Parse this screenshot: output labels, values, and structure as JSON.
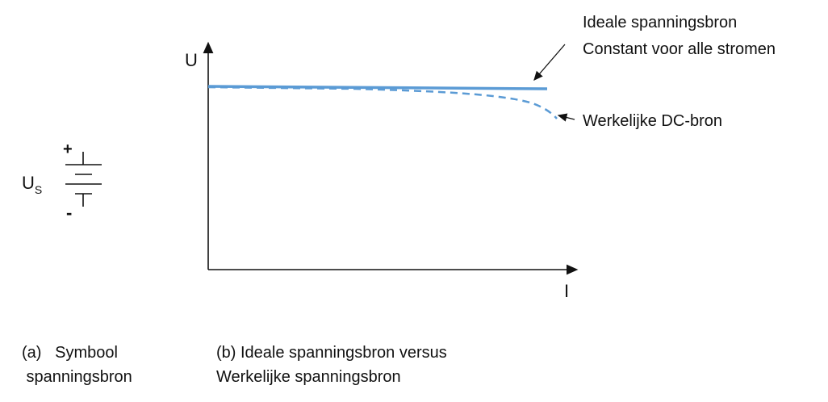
{
  "symbol": {
    "label_main": "U",
    "label_sub": "S",
    "plus": "+",
    "minus": "-"
  },
  "graph": {
    "y_axis_label": "U",
    "x_axis_label": "I",
    "ideal_line_color": "#5b9bd5",
    "real_line_color": "#5b9bd5",
    "annotation_ideal_line1": "Ideale spanningsbron",
    "annotation_ideal_line2": "Constant voor alle stromen",
    "annotation_real": "Werkelijke DC-bron"
  },
  "captions": {
    "a_line1": "(a)   Symbool",
    "a_line2": " spanningsbron",
    "b_line1": "(b) Ideale spanningsbron versus",
    "b_line2": "Werkelijke spanningsbron"
  }
}
